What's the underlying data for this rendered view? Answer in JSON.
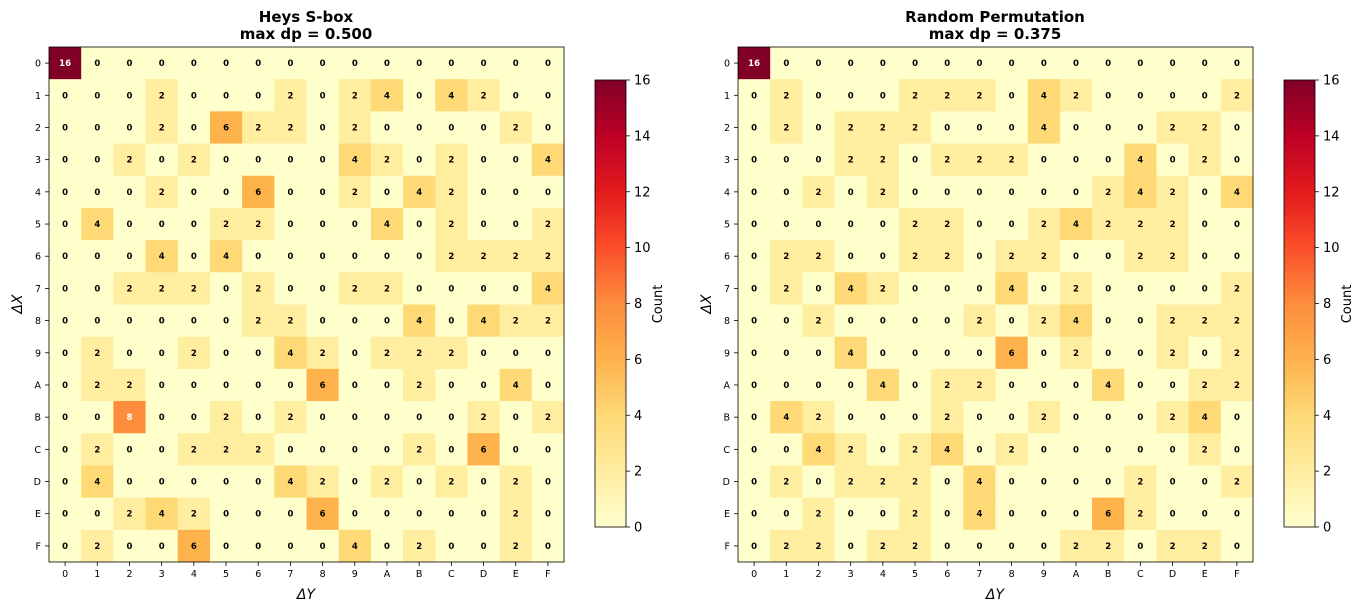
{
  "chart_data": [
    {
      "type": "heatmap",
      "title": "Heys S-box",
      "subtitle": "max dp = 0.500",
      "xlabel": "ΔY",
      "ylabel": "ΔX",
      "x_ticks": [
        "0",
        "1",
        "2",
        "3",
        "4",
        "5",
        "6",
        "7",
        "8",
        "9",
        "A",
        "B",
        "C",
        "D",
        "E",
        "F"
      ],
      "y_ticks": [
        "0",
        "1",
        "2",
        "3",
        "4",
        "5",
        "6",
        "7",
        "8",
        "9",
        "A",
        "B",
        "C",
        "D",
        "E",
        "F"
      ],
      "colorbar": {
        "label": "Count",
        "min": 0,
        "max": 16,
        "ticks": [
          "0",
          "2",
          "4",
          "6",
          "8",
          "10",
          "12",
          "14",
          "16"
        ]
      },
      "values": [
        [
          16,
          0,
          0,
          0,
          0,
          0,
          0,
          0,
          0,
          0,
          0,
          0,
          0,
          0,
          0,
          0
        ],
        [
          0,
          0,
          0,
          2,
          0,
          0,
          0,
          2,
          0,
          2,
          4,
          0,
          4,
          2,
          0,
          0
        ],
        [
          0,
          0,
          0,
          2,
          0,
          6,
          2,
          2,
          0,
          2,
          0,
          0,
          0,
          0,
          2,
          0
        ],
        [
          0,
          0,
          2,
          0,
          2,
          0,
          0,
          0,
          0,
          4,
          2,
          0,
          2,
          0,
          0,
          4
        ],
        [
          0,
          0,
          0,
          2,
          0,
          0,
          6,
          0,
          0,
          2,
          0,
          4,
          2,
          0,
          0,
          0
        ],
        [
          0,
          4,
          0,
          0,
          0,
          2,
          2,
          0,
          0,
          0,
          4,
          0,
          2,
          0,
          0,
          2
        ],
        [
          0,
          0,
          0,
          4,
          0,
          4,
          0,
          0,
          0,
          0,
          0,
          0,
          2,
          2,
          2,
          2
        ],
        [
          0,
          0,
          2,
          2,
          2,
          0,
          2,
          0,
          0,
          2,
          2,
          0,
          0,
          0,
          0,
          4
        ],
        [
          0,
          0,
          0,
          0,
          0,
          0,
          2,
          2,
          0,
          0,
          0,
          4,
          0,
          4,
          2,
          2
        ],
        [
          0,
          2,
          0,
          0,
          2,
          0,
          0,
          4,
          2,
          0,
          2,
          2,
          2,
          0,
          0,
          0
        ],
        [
          0,
          2,
          2,
          0,
          0,
          0,
          0,
          0,
          6,
          0,
          0,
          2,
          0,
          0,
          4,
          0
        ],
        [
          0,
          0,
          8,
          0,
          0,
          2,
          0,
          2,
          0,
          0,
          0,
          0,
          0,
          2,
          0,
          2
        ],
        [
          0,
          2,
          0,
          0,
          2,
          2,
          2,
          0,
          0,
          0,
          0,
          2,
          0,
          6,
          0,
          0
        ],
        [
          0,
          4,
          0,
          0,
          0,
          0,
          0,
          4,
          2,
          0,
          2,
          0,
          2,
          0,
          2,
          0
        ],
        [
          0,
          0,
          2,
          4,
          2,
          0,
          0,
          0,
          6,
          0,
          0,
          0,
          0,
          0,
          2,
          0
        ],
        [
          0,
          2,
          0,
          0,
          6,
          0,
          0,
          0,
          0,
          4,
          0,
          2,
          0,
          0,
          2,
          0
        ]
      ]
    },
    {
      "type": "heatmap",
      "title": "Random Permutation",
      "subtitle": "max dp = 0.375",
      "xlabel": "ΔY",
      "ylabel": "ΔX",
      "x_ticks": [
        "0",
        "1",
        "2",
        "3",
        "4",
        "5",
        "6",
        "7",
        "8",
        "9",
        "A",
        "B",
        "C",
        "D",
        "E",
        "F"
      ],
      "y_ticks": [
        "0",
        "1",
        "2",
        "3",
        "4",
        "5",
        "6",
        "7",
        "8",
        "9",
        "A",
        "B",
        "C",
        "D",
        "E",
        "F"
      ],
      "colorbar": {
        "label": "Count",
        "min": 0,
        "max": 16,
        "ticks": [
          "0",
          "2",
          "4",
          "6",
          "8",
          "10",
          "12",
          "14",
          "16"
        ]
      },
      "values": [
        [
          16,
          0,
          0,
          0,
          0,
          0,
          0,
          0,
          0,
          0,
          0,
          0,
          0,
          0,
          0,
          0
        ],
        [
          0,
          2,
          0,
          0,
          0,
          2,
          2,
          2,
          0,
          4,
          2,
          0,
          0,
          0,
          0,
          2
        ],
        [
          0,
          2,
          0,
          2,
          2,
          2,
          0,
          0,
          0,
          4,
          0,
          0,
          0,
          2,
          2,
          0
        ],
        [
          0,
          0,
          0,
          2,
          2,
          0,
          2,
          2,
          2,
          0,
          0,
          0,
          4,
          0,
          2,
          0
        ],
        [
          0,
          0,
          2,
          0,
          2,
          0,
          0,
          0,
          0,
          0,
          0,
          2,
          4,
          2,
          0,
          4
        ],
        [
          0,
          0,
          0,
          0,
          0,
          2,
          2,
          0,
          0,
          2,
          4,
          2,
          2,
          2,
          0,
          0
        ],
        [
          0,
          2,
          2,
          0,
          0,
          2,
          2,
          0,
          2,
          2,
          0,
          0,
          2,
          2,
          0,
          0
        ],
        [
          0,
          2,
          0,
          4,
          2,
          0,
          0,
          0,
          4,
          0,
          2,
          0,
          0,
          0,
          0,
          2
        ],
        [
          0,
          0,
          2,
          0,
          0,
          0,
          0,
          2,
          0,
          2,
          4,
          0,
          0,
          2,
          2,
          2
        ],
        [
          0,
          0,
          0,
          4,
          0,
          0,
          0,
          0,
          6,
          0,
          2,
          0,
          0,
          2,
          0,
          2
        ],
        [
          0,
          0,
          0,
          0,
          4,
          0,
          2,
          2,
          0,
          0,
          0,
          4,
          0,
          0,
          2,
          2
        ],
        [
          0,
          4,
          2,
          0,
          0,
          0,
          2,
          0,
          0,
          2,
          0,
          0,
          0,
          2,
          4,
          0
        ],
        [
          0,
          0,
          4,
          2,
          0,
          2,
          4,
          0,
          2,
          0,
          0,
          0,
          0,
          0,
          2,
          0
        ],
        [
          0,
          2,
          0,
          2,
          2,
          2,
          0,
          4,
          0,
          0,
          0,
          0,
          2,
          0,
          0,
          2
        ],
        [
          0,
          0,
          2,
          0,
          0,
          2,
          0,
          4,
          0,
          0,
          0,
          6,
          2,
          0,
          0,
          0
        ],
        [
          0,
          2,
          2,
          0,
          2,
          2,
          0,
          0,
          0,
          0,
          2,
          2,
          0,
          2,
          2,
          0
        ]
      ]
    }
  ]
}
